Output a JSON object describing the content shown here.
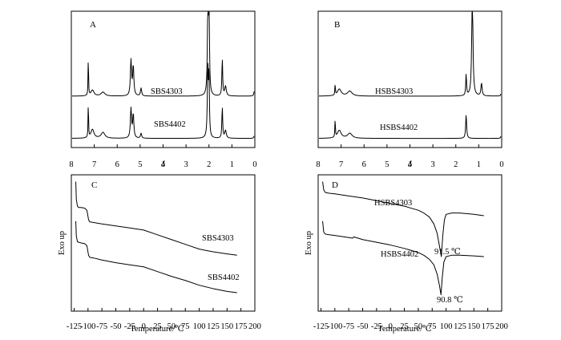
{
  "chart_data": [
    {
      "panel": "A",
      "type": "line",
      "xlabel": "δ",
      "ylabel": "",
      "xlim": [
        8,
        0
      ],
      "x_ticks": [
        8,
        7,
        6,
        5,
        4,
        3,
        2,
        1,
        0
      ],
      "series": [
        {
          "name": "SBS4303",
          "baseline": 0.33,
          "peaks": [
            {
              "x": 7.26,
              "h": 0.42,
              "w": 0.012
            },
            {
              "x": 7.08,
              "h": 0.06,
              "w": 0.08
            },
            {
              "x": 6.62,
              "h": 0.04,
              "w": 0.1
            },
            {
              "x": 5.4,
              "h": 0.36,
              "w": 0.03
            },
            {
              "x": 5.3,
              "h": 0.3,
              "w": 0.03
            },
            {
              "x": 4.96,
              "h": 0.08,
              "w": 0.03
            },
            {
              "x": 2.05,
              "h": 0.8,
              "w": 0.025
            },
            {
              "x": 2.0,
              "h": 1.1,
              "w": 0.02
            },
            {
              "x": 1.42,
              "h": 0.38,
              "w": 0.02
            },
            {
              "x": 1.28,
              "h": 0.1,
              "w": 0.04
            },
            {
              "x": 0.0,
              "h": 0.44,
              "w": 0.012
            }
          ]
        },
        {
          "name": "SBS4402",
          "baseline": 0.02,
          "peaks": [
            {
              "x": 7.26,
              "h": 0.38,
              "w": 0.012
            },
            {
              "x": 7.08,
              "h": 0.09,
              "w": 0.08
            },
            {
              "x": 6.62,
              "h": 0.06,
              "w": 0.1
            },
            {
              "x": 5.4,
              "h": 0.3,
              "w": 0.03
            },
            {
              "x": 5.3,
              "h": 0.24,
              "w": 0.03
            },
            {
              "x": 4.96,
              "h": 0.05,
              "w": 0.03
            },
            {
              "x": 2.05,
              "h": 0.7,
              "w": 0.025
            },
            {
              "x": 2.0,
              "h": 0.62,
              "w": 0.02
            },
            {
              "x": 1.42,
              "h": 0.32,
              "w": 0.02
            },
            {
              "x": 1.28,
              "h": 0.08,
              "w": 0.04
            },
            {
              "x": 0.0,
              "h": 0.22,
              "w": 0.012
            }
          ]
        }
      ]
    },
    {
      "panel": "B",
      "type": "line",
      "xlabel": "δ",
      "ylabel": "",
      "xlim": [
        8,
        0
      ],
      "x_ticks": [
        8,
        7,
        6,
        5,
        4,
        3,
        2,
        1,
        0
      ],
      "series": [
        {
          "name": "HSBS4303",
          "baseline": 0.33,
          "peaks": [
            {
              "x": 7.26,
              "h": 0.12,
              "w": 0.012
            },
            {
              "x": 7.08,
              "h": 0.07,
              "w": 0.1
            },
            {
              "x": 6.62,
              "h": 0.05,
              "w": 0.12
            },
            {
              "x": 1.55,
              "h": 0.22,
              "w": 0.02
            },
            {
              "x": 1.28,
              "h": 1.12,
              "w": 0.03
            },
            {
              "x": 0.88,
              "h": 0.13,
              "w": 0.03
            },
            {
              "x": 0.0,
              "h": 0.2,
              "w": 0.012
            }
          ]
        },
        {
          "name": "HSBS4402",
          "baseline": 0.02,
          "peaks": [
            {
              "x": 7.26,
              "h": 0.2,
              "w": 0.012
            },
            {
              "x": 7.08,
              "h": 0.08,
              "w": 0.1
            },
            {
              "x": 6.62,
              "h": 0.05,
              "w": 0.12
            },
            {
              "x": 1.55,
              "h": 0.24,
              "w": 0.025
            },
            {
              "x": 0.0,
              "h": 0.2,
              "w": 0.012
            }
          ]
        }
      ]
    },
    {
      "panel": "C",
      "type": "line",
      "xlabel": "Temperature/℃",
      "ylabel": "Exo up",
      "xlim": [
        -130,
        200
      ],
      "x_ticks": [
        -125,
        -100,
        -75,
        -50,
        -25,
        0,
        25,
        50,
        75,
        100,
        125,
        150,
        175,
        200
      ],
      "x_tick_labels": [
        "-125",
        "-100",
        "-75",
        "-50",
        "-25",
        "0",
        "25",
        "50",
        "75",
        "100",
        "125",
        "150",
        "175",
        "200"
      ],
      "ylim": [
        0,
        1
      ],
      "series": [
        {
          "name": "SBS4303",
          "x": [
            -122,
            -121,
            -119,
            -117,
            -112,
            -106,
            -102,
            -99,
            -97,
            -90,
            -75,
            -50,
            -25,
            0,
            25,
            50,
            75,
            100,
            125,
            150,
            168
          ],
          "y": [
            0.95,
            0.82,
            0.77,
            0.76,
            0.76,
            0.755,
            0.74,
            0.67,
            0.655,
            0.65,
            0.64,
            0.625,
            0.61,
            0.595,
            0.56,
            0.525,
            0.49,
            0.455,
            0.435,
            0.42,
            0.41
          ]
        },
        {
          "name": "SBS4402",
          "x": [
            -122,
            -121,
            -119,
            -117,
            -112,
            -106,
            -102,
            -99,
            -97,
            -90,
            -75,
            -50,
            -25,
            0,
            25,
            50,
            75,
            100,
            125,
            150,
            168
          ],
          "y": [
            0.66,
            0.55,
            0.51,
            0.505,
            0.5,
            0.495,
            0.48,
            0.41,
            0.395,
            0.39,
            0.375,
            0.355,
            0.34,
            0.325,
            0.29,
            0.255,
            0.225,
            0.19,
            0.165,
            0.145,
            0.135
          ]
        }
      ]
    },
    {
      "panel": "D",
      "type": "line",
      "xlabel": "Temperature/℃",
      "ylabel": "Exo up",
      "xlim": [
        -130,
        200
      ],
      "x_ticks": [
        -125,
        -100,
        -75,
        -50,
        -25,
        0,
        25,
        50,
        75,
        100,
        125,
        150,
        175,
        200
      ],
      "x_tick_labels": [
        "-125",
        "-100",
        "-75",
        "-50",
        "-25",
        "0",
        "25",
        "50",
        "75",
        "100",
        "125",
        "150",
        "175",
        "200"
      ],
      "ylim": [
        0,
        1
      ],
      "series": [
        {
          "name": "HSBS4303",
          "x": [
            -122,
            -120,
            -117,
            -110,
            -100,
            -75,
            -50,
            -25,
            0,
            25,
            50,
            60,
            70,
            78,
            84,
            88,
            91.5,
            94,
            97,
            100,
            110,
            125,
            150,
            168
          ],
          "y": [
            0.95,
            0.89,
            0.87,
            0.865,
            0.86,
            0.845,
            0.83,
            0.81,
            0.79,
            0.77,
            0.74,
            0.72,
            0.69,
            0.64,
            0.57,
            0.48,
            0.4,
            0.55,
            0.67,
            0.71,
            0.72,
            0.72,
            0.71,
            0.7
          ],
          "annotation": "91.5 ℃",
          "annotation_x": 91.5
        },
        {
          "name": "HSBS4402",
          "x": [
            -122,
            -120,
            -117,
            -110,
            -100,
            -75,
            -68,
            -66,
            -50,
            -25,
            0,
            25,
            50,
            60,
            70,
            78,
            84,
            88,
            90.8,
            93,
            96,
            100,
            110,
            125,
            150,
            168
          ],
          "y": [
            0.66,
            0.58,
            0.565,
            0.56,
            0.555,
            0.54,
            0.535,
            0.545,
            0.525,
            0.505,
            0.485,
            0.46,
            0.43,
            0.41,
            0.38,
            0.34,
            0.27,
            0.19,
            0.12,
            0.24,
            0.36,
            0.4,
            0.41,
            0.41,
            0.405,
            0.4
          ],
          "annotation": "90.8 ℃",
          "annotation_x": 90.8
        }
      ]
    }
  ]
}
